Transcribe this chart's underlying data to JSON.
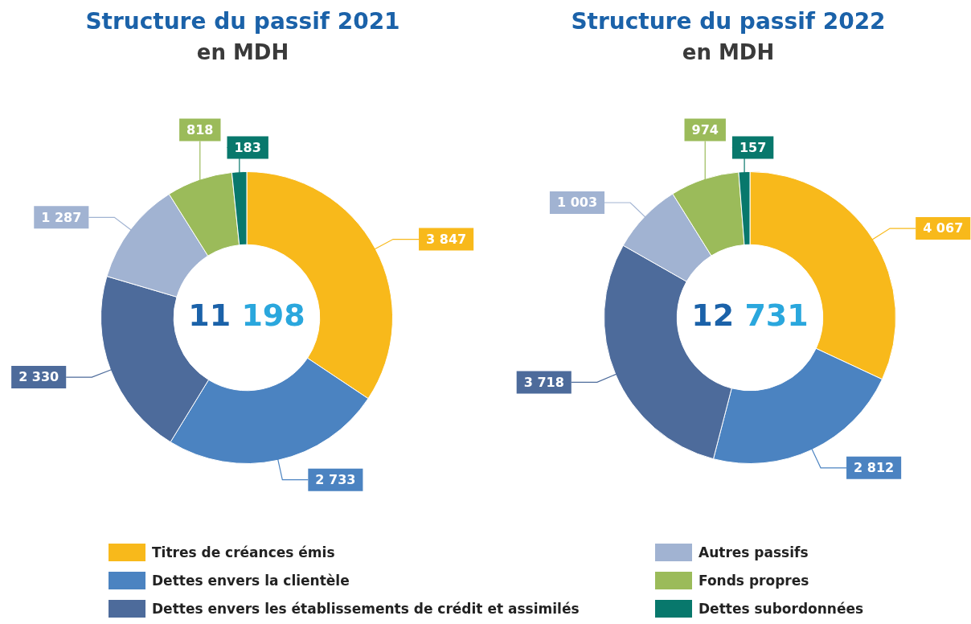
{
  "chart_data": [
    {
      "type": "donut",
      "title": "Structure du passif 2021",
      "subtitle": "en MDH",
      "categories": [
        "Titres de créances émis",
        "Dettes envers la clientèle",
        "Dettes envers les établissements de crédit et assimilés",
        "Autres passifs",
        "Fonds propres",
        "Dettes subordonnées"
      ],
      "values": [
        3847,
        2733,
        2330,
        1287,
        818,
        183
      ],
      "value_labels": [
        "3 847",
        "2 733",
        "2 330",
        "1 287",
        "818",
        "183"
      ],
      "colors": [
        "#f8b91b",
        "#4b83c1",
        "#4d6b9b",
        "#a1b3d2",
        "#9bbb5a",
        "#08786c"
      ],
      "annotations": [
        "11 198"
      ],
      "legend": "bottom"
    },
    {
      "type": "donut",
      "title": "Structure du passif 2022",
      "subtitle": "en MDH",
      "categories": [
        null,
        null,
        null,
        null,
        null,
        null
      ],
      "values": [
        4067,
        2812,
        3718,
        1003,
        974,
        157
      ],
      "value_labels": [
        "4 067",
        "2 812",
        "3 718",
        "1 003",
        "974",
        "157"
      ],
      "colors": [
        "#f8b91b",
        "#4b83c1",
        "#4d6b9b",
        "#a1b3d2",
        "#9bbb5a",
        "#08786c"
      ],
      "annotations": [
        "12 731"
      ]
    }
  ]
}
